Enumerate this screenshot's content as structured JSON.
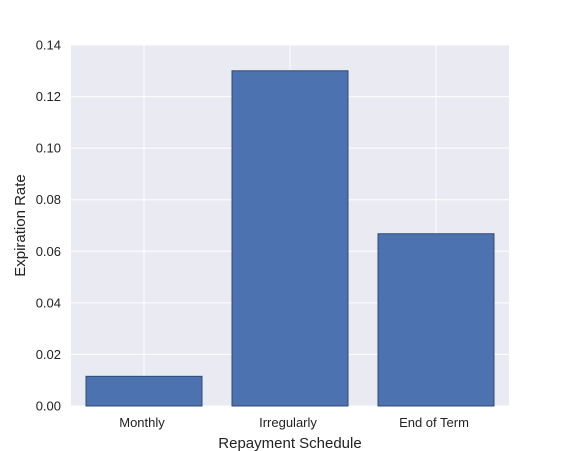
{
  "chart_data": {
    "type": "bar",
    "categories": [
      "Monthly",
      "Irregularly",
      "End of Term"
    ],
    "values": [
      0.0115,
      0.13,
      0.0668
    ],
    "xlabel": "Repayment Schedule",
    "ylabel": "Expiration Rate",
    "ylim": [
      0,
      0.14
    ],
    "yticks": [
      "0.00",
      "0.02",
      "0.04",
      "0.06",
      "0.08",
      "0.10",
      "0.12",
      "0.14"
    ],
    "grid": true,
    "colors": {
      "bar_fill": "#4c72b0",
      "bar_edge": "#2f4a75",
      "plot_background": "#eaeaf2",
      "grid": "#ffffff"
    }
  }
}
